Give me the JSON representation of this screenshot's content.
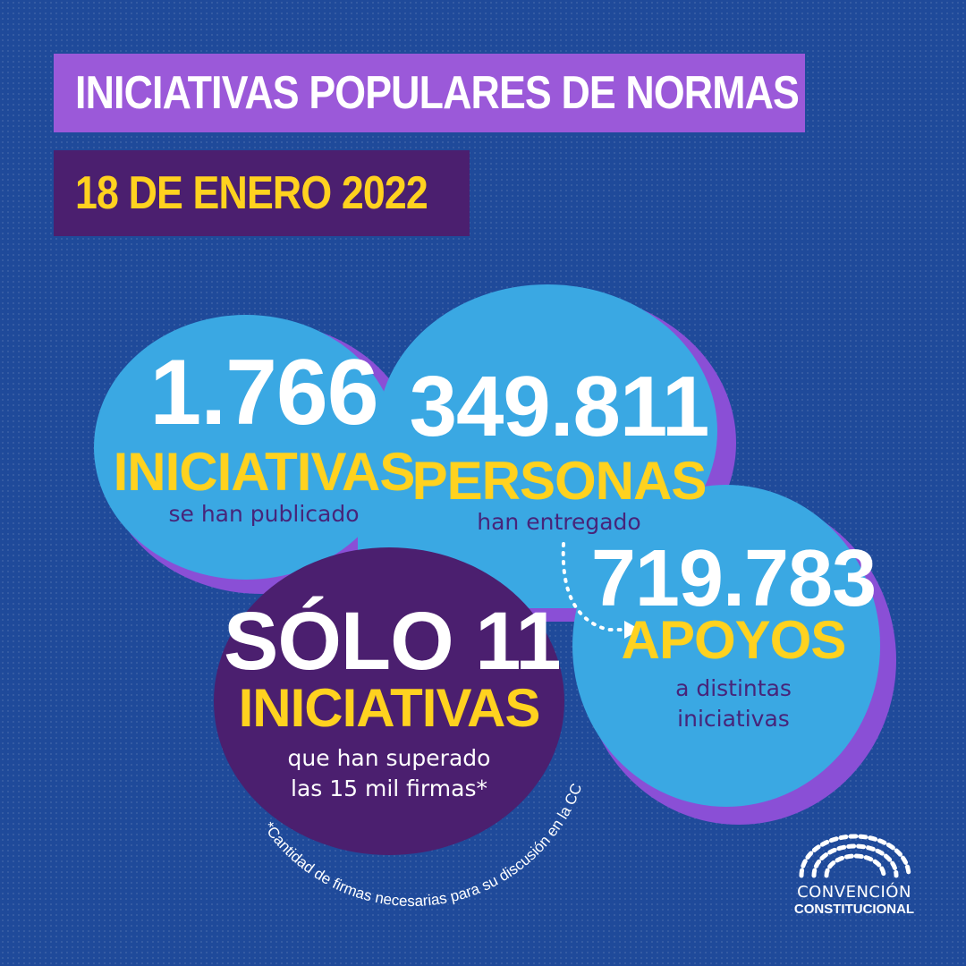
{
  "header": {
    "title": "INICIATIVAS POPULARES DE NORMAS",
    "date": "18 DE ENERO 2022"
  },
  "stats": {
    "initiatives": {
      "number": "1.766",
      "label": "INICIATIVAS",
      "caption": "se han publicado"
    },
    "people": {
      "number": "349.811",
      "label": "PERSONAS",
      "caption": "han entregado"
    },
    "supports": {
      "number": "719.783",
      "label": "APOYOS",
      "caption_line1": "a distintas",
      "caption_line2": "iniciativas"
    },
    "only": {
      "number": "SÓLO 11",
      "label": "INICIATIVAS",
      "caption_line1": "que han superado",
      "caption_line2": "las 15 mil firmas*"
    }
  },
  "footnote": "*Cantidad de firmas necesarias para su discusión en la CC",
  "logo": {
    "line1": "CONVENCIÓN",
    "line2": "CONSTITUCIONAL"
  },
  "colors": {
    "background": "#1f4a9a",
    "bubble_light": "#3aa8e3",
    "bubble_shadow": "#8a4fd6",
    "bubble_dark": "#4b1f6f",
    "accent_yellow": "#ffd21f"
  }
}
